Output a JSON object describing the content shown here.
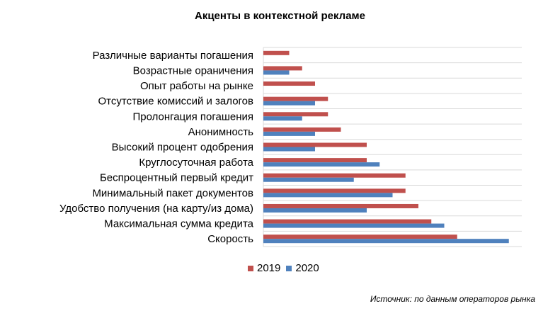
{
  "chart_data": {
    "type": "bar",
    "orientation": "horizontal",
    "title": "Акценты в контекстной рекламе",
    "categories": [
      "Различные  варианты погашения",
      "Возрастные ораничения",
      "Опыт работы на рынке",
      "Отсутствие  комиссий и залогов",
      "Пролонгация погашения",
      "Анонимность",
      "Высокий процент одобрения",
      "Круглосуточная  работа",
      "Беспроцентный первый кредит",
      "Минимальный  пакет документов",
      "Удобство получения  (на карту/из дома)",
      "Максимальная сумма кредита",
      "Скорость"
    ],
    "series": [
      {
        "name": "2019",
        "color": "#c0504d",
        "values": [
          2,
          3,
          4,
          5,
          5,
          6,
          8,
          8,
          11,
          11,
          12,
          13,
          15
        ]
      },
      {
        "name": "2020",
        "color": "#4f81bd",
        "values": [
          0,
          2,
          0,
          4,
          3,
          4,
          4,
          9,
          7,
          10,
          8,
          14,
          19
        ]
      }
    ],
    "xlim": [
      0,
      20
    ],
    "grid": true,
    "legend_position": "bottom"
  },
  "source_note": "Источник: по данным операторов рынка"
}
